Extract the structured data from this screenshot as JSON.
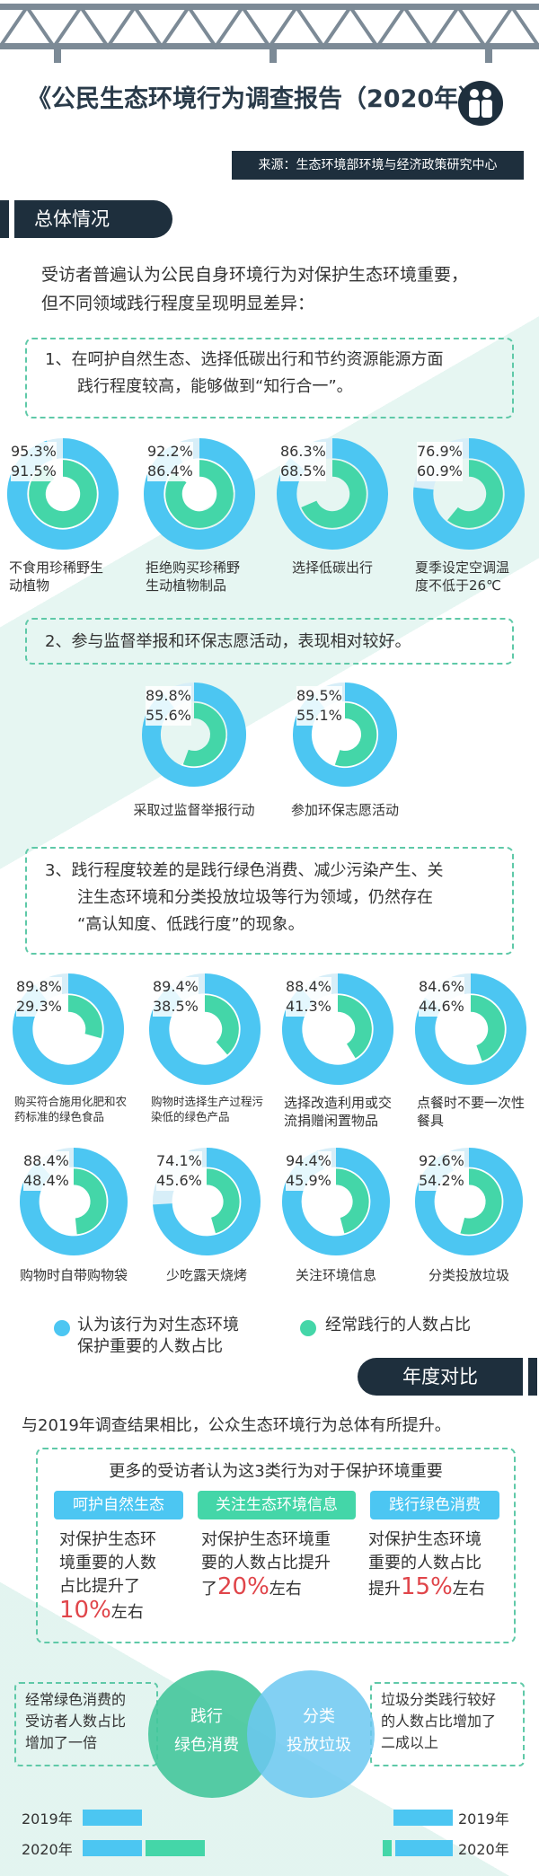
{
  "header": {
    "title": "《公民生态环境行为调查报告（2020年）》",
    "source": "来源：生态环境部环境与经济政策研究中心"
  },
  "section1": {
    "heading": "总体情况",
    "intro_line1": "受访者普遍认为公民自身环境行为对保护生态环境重要，",
    "intro_line2": "但不同领域践行程度呈现明显差异：",
    "box1_line1": "1、在呵护自然生态、选择低碳出行和节约资源能源方面",
    "box1_line2": "践行程度较高，能够做到“知行合一”。",
    "box2": "2、参与监督举报和环保志愿活动，表现相对较好。",
    "box3_line1": "3、践行程度较差的是践行绿色消费、减少污染产生、关",
    "box3_line2": "注生态环境和分类投放垃圾等行为领域，仍然存在",
    "box3_line3": "“高认知度、低践行度”的现象。"
  },
  "colors": {
    "important": "#4cc6f2",
    "practiced": "#44d6a8",
    "track": "#d7eef8",
    "dark": "#1e2f3d"
  },
  "chart_data": {
    "type": "donut",
    "series": [
      {
        "name": "认为该行为对生态环境保护重要的人数占比"
      },
      {
        "name": "经常践行的人数占比"
      }
    ],
    "groups": [
      {
        "items": [
          {
            "label": [
              "不食用珍稀野生",
              "动植物"
            ],
            "important": 95.3,
            "practiced": 91.5,
            "important_text": "95.3%",
            "practiced_text": "91.5%"
          },
          {
            "label": [
              "拒绝购买珍稀野",
              "生动植物制品"
            ],
            "important": 92.2,
            "practiced": 86.4,
            "important_text": "92.2%",
            "practiced_text": "86.4%"
          },
          {
            "label": [
              "选择低碳出行"
            ],
            "important": 86.3,
            "practiced": 68.5,
            "important_text": "86.3%",
            "practiced_text": "68.5%"
          },
          {
            "label": [
              "夏季设定空调温",
              "度不低于26℃"
            ],
            "important": 76.9,
            "practiced": 60.9,
            "important_text": "76.9%",
            "practiced_text": "60.9%"
          }
        ]
      },
      {
        "items": [
          {
            "label": [
              "采取过监督举报行动"
            ],
            "important": 89.8,
            "practiced": 55.6,
            "important_text": "89.8%",
            "practiced_text": "55.6%"
          },
          {
            "label": [
              "参加环保志愿活动"
            ],
            "important": 89.5,
            "practiced": 55.1,
            "important_text": "89.5%",
            "practiced_text": "55.1%"
          }
        ]
      },
      {
        "items": [
          {
            "label": [
              "购买符合施用化肥和农",
              "药标准的绿色食品"
            ],
            "important": 89.8,
            "practiced": 29.3,
            "important_text": "89.8%",
            "practiced_text": "29.3%",
            "small": true
          },
          {
            "label": [
              "购物时选择生产过程污",
              "染低的绿色产品"
            ],
            "important": 89.4,
            "practiced": 38.5,
            "important_text": "89.4%",
            "practiced_text": "38.5%",
            "small": true
          },
          {
            "label": [
              "选择改造利用或交",
              "流捐赠闲置物品"
            ],
            "important": 88.4,
            "practiced": 41.3,
            "important_text": "88.4%",
            "practiced_text": "41.3%"
          },
          {
            "label": [
              "点餐时不要一次性",
              "餐具"
            ],
            "important": 84.6,
            "practiced": 44.6,
            "important_text": "84.6%",
            "practiced_text": "44.6%"
          }
        ]
      },
      {
        "items": [
          {
            "label": [
              "购物时自带购物袋"
            ],
            "important": 88.4,
            "practiced": 48.4,
            "important_text": "88.4%",
            "practiced_text": "48.4%"
          },
          {
            "label": [
              "少吃露天烧烤"
            ],
            "important": 74.1,
            "practiced": 45.6,
            "important_text": "74.1%",
            "practiced_text": "45.6%"
          },
          {
            "label": [
              "关注环境信息"
            ],
            "important": 94.4,
            "practiced": 45.9,
            "important_text": "94.4%",
            "practiced_text": "45.9%"
          },
          {
            "label": [
              "分类投放垃圾"
            ],
            "important": 92.6,
            "practiced": 54.2,
            "important_text": "92.6%",
            "practiced_text": "54.2%"
          }
        ]
      }
    ]
  },
  "legend": {
    "important_line1": "认为该行为对生态环境",
    "important_line2": "保护重要的人数占比",
    "practiced": "经常践行的人数占比"
  },
  "section2": {
    "heading": "年度对比",
    "compare": "与2019年调查结果相比，公众生态环境行为总体有所提升。",
    "box_head": "更多的受访者认为这3类行为对于保护环境重要",
    "cols": [
      {
        "tag": "呵护自然生态",
        "tag_color": "#4cc6f2",
        "l1": "对保护生态环",
        "l2": "境重要的人数",
        "l3": "占比提升了",
        "num": "10%",
        "suffix": "左右"
      },
      {
        "tag": "关注生态环境信息",
        "tag_color": "#44d6a8",
        "l1": "对保护生态环境重",
        "l2": "要的人数占比提升",
        "l3": "了",
        "num": "20%",
        "suffix": "左右"
      },
      {
        "tag": "践行绿色消费",
        "tag_color": "#4cc6f2",
        "l1": "对保护生态环境",
        "l2": "重要的人数占比",
        "l3": "提升",
        "num": "15%",
        "suffix": "左右"
      }
    ],
    "left_box": [
      "经常绿色消费的",
      "受访者人数占比",
      "增加了一倍"
    ],
    "right_box": [
      "垃圾分类践行较好",
      "的人数占比增加了",
      "二成以上"
    ],
    "venn_left": [
      "践行",
      "绿色消费"
    ],
    "venn_right": [
      "分类",
      "投放垃圾"
    ],
    "year_2019": "2019年",
    "year_2020": "2020年"
  }
}
